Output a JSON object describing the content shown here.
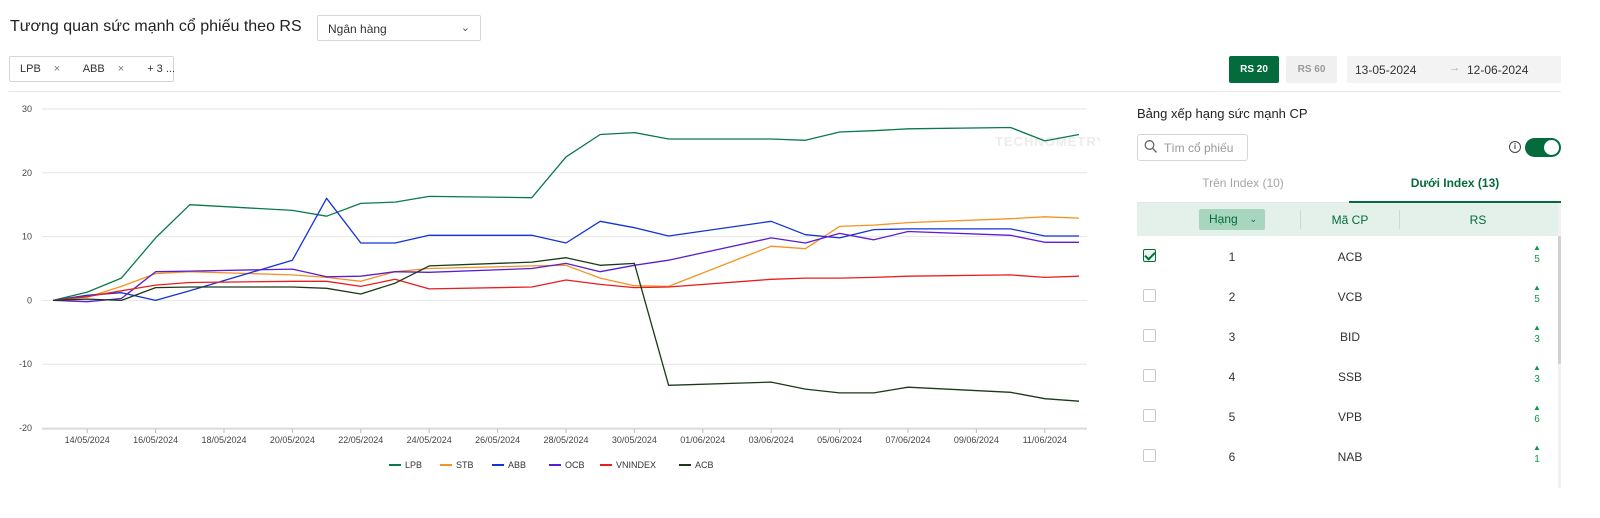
{
  "header": {
    "title": "Tương quan sức mạnh cổ phiếu theo RS",
    "sector_select": "Ngân hàng"
  },
  "filters": {
    "tags": [
      "LPB",
      "ABB"
    ],
    "more": "+ 3 ..."
  },
  "controls": {
    "rs20": "RS 20",
    "rs60": "RS 60",
    "date_from": "13-05-2024",
    "date_to": "12-06-2024",
    "active": "RS 20"
  },
  "watermark": "TECHNOMETRY",
  "chart_data": {
    "type": "line",
    "x": [
      "13/05/2024",
      "14/05/2024",
      "15/05/2024",
      "16/05/2024",
      "17/05/2024",
      "20/05/2024",
      "21/05/2024",
      "22/05/2024",
      "23/05/2024",
      "24/05/2024",
      "27/05/2024",
      "28/05/2024",
      "29/05/2024",
      "30/05/2024",
      "31/05/2024",
      "03/06/2024",
      "04/06/2024",
      "05/06/2024",
      "06/06/2024",
      "07/06/2024",
      "10/06/2024",
      "11/06/2024",
      "12/06/2024"
    ],
    "x_tick_labels": [
      "14/05/2024",
      "16/05/2024",
      "18/05/2024",
      "20/05/2024",
      "22/05/2024",
      "24/05/2024",
      "26/05/2024",
      "28/05/2024",
      "30/05/2024",
      "01/06/2024",
      "03/06/2024",
      "05/06/2024",
      "07/06/2024",
      "09/06/2024",
      "11/06/2024"
    ],
    "ylim": [
      -20,
      30
    ],
    "yticks": [
      30,
      20,
      10,
      0,
      -10,
      -20
    ],
    "legend_position": "bottom",
    "series": [
      {
        "name": "LPB",
        "color": "#0a7a4a",
        "values": [
          0,
          1.3,
          3.5,
          9.8,
          15,
          14.1,
          13.2,
          15.2,
          15.4,
          16.3,
          16.1,
          22.5,
          26,
          26.3,
          25.3,
          25.3,
          25.1,
          26.4,
          26.6,
          26.9,
          27.1,
          25,
          26
        ]
      },
      {
        "name": "STB",
        "color": "#f39323",
        "values": [
          0,
          0.5,
          2.2,
          4.2,
          4.5,
          4,
          3.6,
          3,
          4.5,
          5,
          5.4,
          5.5,
          3.5,
          2.3,
          2.2,
          8.5,
          8.1,
          11.6,
          11.8,
          12.2,
          12.8,
          13.1,
          12.9
        ]
      },
      {
        "name": "ABB",
        "color": "#1433d6",
        "values": [
          0,
          0.8,
          1.2,
          0,
          1.5,
          6.3,
          16,
          9,
          9,
          10.2,
          10.2,
          9,
          12.4,
          11.4,
          10.1,
          12.4,
          10.3,
          9.8,
          11.1,
          11.2,
          11.2,
          10.1,
          10.1
        ]
      },
      {
        "name": "OCB",
        "color": "#5a1ed2",
        "values": [
          0,
          -0.2,
          0.3,
          4.5,
          4.6,
          4.9,
          3.7,
          3.8,
          4.5,
          4.4,
          5,
          5.8,
          4.5,
          5.5,
          6.3,
          9.8,
          9,
          10.5,
          9.5,
          10.8,
          10.2,
          9.1,
          9.1
        ]
      },
      {
        "name": "VNINDEX",
        "color": "#e81e1e",
        "values": [
          0,
          0.6,
          1.5,
          2.4,
          2.8,
          3,
          3,
          2.2,
          3.3,
          1.8,
          2.1,
          3.2,
          2.5,
          2,
          2.1,
          3.3,
          3.5,
          3.5,
          3.6,
          3.8,
          4,
          3.6,
          3.8
        ]
      },
      {
        "name": "ACB",
        "color": "#1a3a17",
        "values": [
          0,
          0.2,
          0,
          2,
          2.1,
          2.1,
          1.9,
          1,
          2.7,
          5.4,
          6,
          6.7,
          5.5,
          5.8,
          -13.3,
          -12.8,
          -13.9,
          -14.5,
          -14.5,
          -13.6,
          -14.4,
          -15.4,
          -15.8
        ]
      }
    ]
  },
  "ranking": {
    "title": "Bảng xếp hạng sức mạnh CP",
    "search_placeholder": "Tìm cổ phiếu",
    "tab_above": "Trên Index (10)",
    "tab_below": "Dưới Index (13)",
    "col_rank": "Hạng",
    "col_code": "Mã CP",
    "col_rs": "RS",
    "rows": [
      {
        "rank": "1",
        "code": "ACB",
        "rs": "5",
        "checked": true
      },
      {
        "rank": "2",
        "code": "VCB",
        "rs": "5",
        "checked": false
      },
      {
        "rank": "3",
        "code": "BID",
        "rs": "3",
        "checked": false
      },
      {
        "rank": "4",
        "code": "SSB",
        "rs": "3",
        "checked": false
      },
      {
        "rank": "5",
        "code": "VPB",
        "rs": "6",
        "checked": false
      },
      {
        "rank": "6",
        "code": "NAB",
        "rs": "1",
        "checked": false
      }
    ]
  }
}
